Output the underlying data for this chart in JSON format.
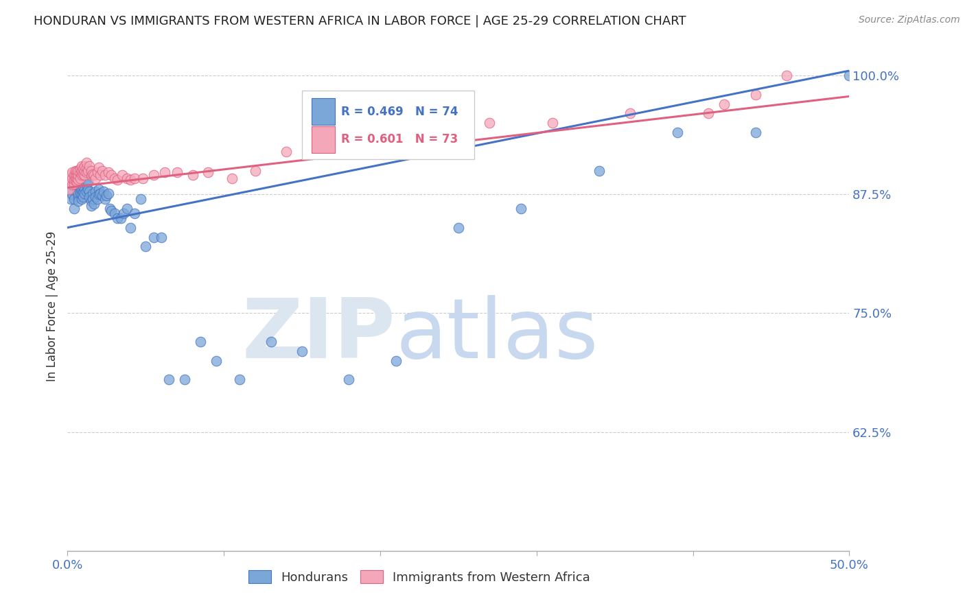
{
  "title": "HONDURAN VS IMMIGRANTS FROM WESTERN AFRICA IN LABOR FORCE | AGE 25-29 CORRELATION CHART",
  "source_text": "Source: ZipAtlas.com",
  "ylabel": "In Labor Force | Age 25-29",
  "xlim": [
    0.0,
    0.5
  ],
  "ylim": [
    0.5,
    1.015
  ],
  "xticks": [
    0.0,
    0.1,
    0.2,
    0.3,
    0.4,
    0.5
  ],
  "xticklabels": [
    "0.0%",
    "",
    "",
    "",
    "",
    "50.0%"
  ],
  "yticks": [
    0.625,
    0.75,
    0.875,
    1.0
  ],
  "yticklabels": [
    "62.5%",
    "75.0%",
    "87.5%",
    "100.0%"
  ],
  "title_color": "#222222",
  "title_fontsize": 13,
  "axis_color": "#4472c4",
  "source_color": "#888888",
  "watermark_zip": "ZIP",
  "watermark_atlas": "atlas",
  "watermark_color": "#dce6f1",
  "blue_color": "#7ba7d8",
  "pink_color": "#f4a7b9",
  "blue_line_color": "#4472c4",
  "pink_line_color": "#e06080",
  "legend_blue_label": "Hondurans",
  "legend_pink_label": "Immigrants from Western Africa",
  "R_blue": 0.469,
  "N_blue": 74,
  "R_pink": 0.601,
  "N_pink": 73,
  "blue_line_x0": 0.0,
  "blue_line_y0": 0.84,
  "blue_line_x1": 0.5,
  "blue_line_y1": 1.005,
  "pink_line_x0": 0.0,
  "pink_line_y0": 0.882,
  "pink_line_x1": 0.5,
  "pink_line_y1": 0.978,
  "blue_scatter_x": [
    0.002,
    0.003,
    0.003,
    0.004,
    0.004,
    0.005,
    0.005,
    0.005,
    0.006,
    0.006,
    0.007,
    0.007,
    0.007,
    0.008,
    0.008,
    0.008,
    0.009,
    0.009,
    0.009,
    0.01,
    0.01,
    0.01,
    0.011,
    0.011,
    0.012,
    0.012,
    0.013,
    0.013,
    0.014,
    0.014,
    0.015,
    0.015,
    0.016,
    0.016,
    0.017,
    0.018,
    0.018,
    0.019,
    0.02,
    0.02,
    0.021,
    0.022,
    0.023,
    0.024,
    0.025,
    0.026,
    0.027,
    0.028,
    0.03,
    0.032,
    0.034,
    0.036,
    0.038,
    0.04,
    0.043,
    0.047,
    0.05,
    0.055,
    0.06,
    0.065,
    0.075,
    0.085,
    0.095,
    0.11,
    0.13,
    0.15,
    0.18,
    0.21,
    0.25,
    0.29,
    0.34,
    0.39,
    0.44,
    0.5
  ],
  "blue_scatter_y": [
    0.87,
    0.875,
    0.88,
    0.86,
    0.87,
    0.885,
    0.89,
    0.895,
    0.878,
    0.882,
    0.872,
    0.876,
    0.868,
    0.88,
    0.876,
    0.884,
    0.87,
    0.875,
    0.88,
    0.882,
    0.877,
    0.872,
    0.88,
    0.876,
    0.885,
    0.878,
    0.888,
    0.88,
    0.878,
    0.872,
    0.868,
    0.863,
    0.876,
    0.87,
    0.865,
    0.878,
    0.872,
    0.87,
    0.88,
    0.875,
    0.876,
    0.874,
    0.878,
    0.87,
    0.874,
    0.876,
    0.86,
    0.858,
    0.855,
    0.85,
    0.85,
    0.855,
    0.86,
    0.84,
    0.855,
    0.87,
    0.82,
    0.83,
    0.83,
    0.68,
    0.68,
    0.72,
    0.7,
    0.68,
    0.72,
    0.71,
    0.68,
    0.7,
    0.84,
    0.86,
    0.9,
    0.94,
    0.94,
    1.0
  ],
  "pink_scatter_x": [
    0.001,
    0.002,
    0.002,
    0.003,
    0.003,
    0.003,
    0.004,
    0.004,
    0.004,
    0.005,
    0.005,
    0.005,
    0.005,
    0.006,
    0.006,
    0.006,
    0.006,
    0.007,
    0.007,
    0.007,
    0.008,
    0.008,
    0.008,
    0.009,
    0.009,
    0.009,
    0.01,
    0.01,
    0.011,
    0.011,
    0.011,
    0.012,
    0.012,
    0.012,
    0.013,
    0.014,
    0.015,
    0.015,
    0.016,
    0.017,
    0.018,
    0.019,
    0.02,
    0.021,
    0.022,
    0.024,
    0.026,
    0.028,
    0.03,
    0.032,
    0.035,
    0.038,
    0.04,
    0.043,
    0.048,
    0.055,
    0.062,
    0.07,
    0.08,
    0.09,
    0.105,
    0.12,
    0.14,
    0.165,
    0.195,
    0.23,
    0.27,
    0.31,
    0.36,
    0.41,
    0.42,
    0.44,
    0.46
  ],
  "pink_scatter_y": [
    0.88,
    0.89,
    0.895,
    0.885,
    0.892,
    0.898,
    0.886,
    0.89,
    0.895,
    0.89,
    0.893,
    0.896,
    0.9,
    0.888,
    0.892,
    0.896,
    0.9,
    0.89,
    0.895,
    0.9,
    0.892,
    0.898,
    0.902,
    0.895,
    0.9,
    0.905,
    0.896,
    0.902,
    0.895,
    0.9,
    0.905,
    0.898,
    0.903,
    0.908,
    0.9,
    0.905,
    0.895,
    0.9,
    0.896,
    0.895,
    0.892,
    0.898,
    0.903,
    0.895,
    0.9,
    0.895,
    0.898,
    0.895,
    0.892,
    0.89,
    0.895,
    0.892,
    0.89,
    0.892,
    0.892,
    0.895,
    0.898,
    0.898,
    0.895,
    0.898,
    0.892,
    0.9,
    0.92,
    0.93,
    0.93,
    0.94,
    0.95,
    0.95,
    0.96,
    0.96,
    0.97,
    0.98,
    1.0
  ]
}
